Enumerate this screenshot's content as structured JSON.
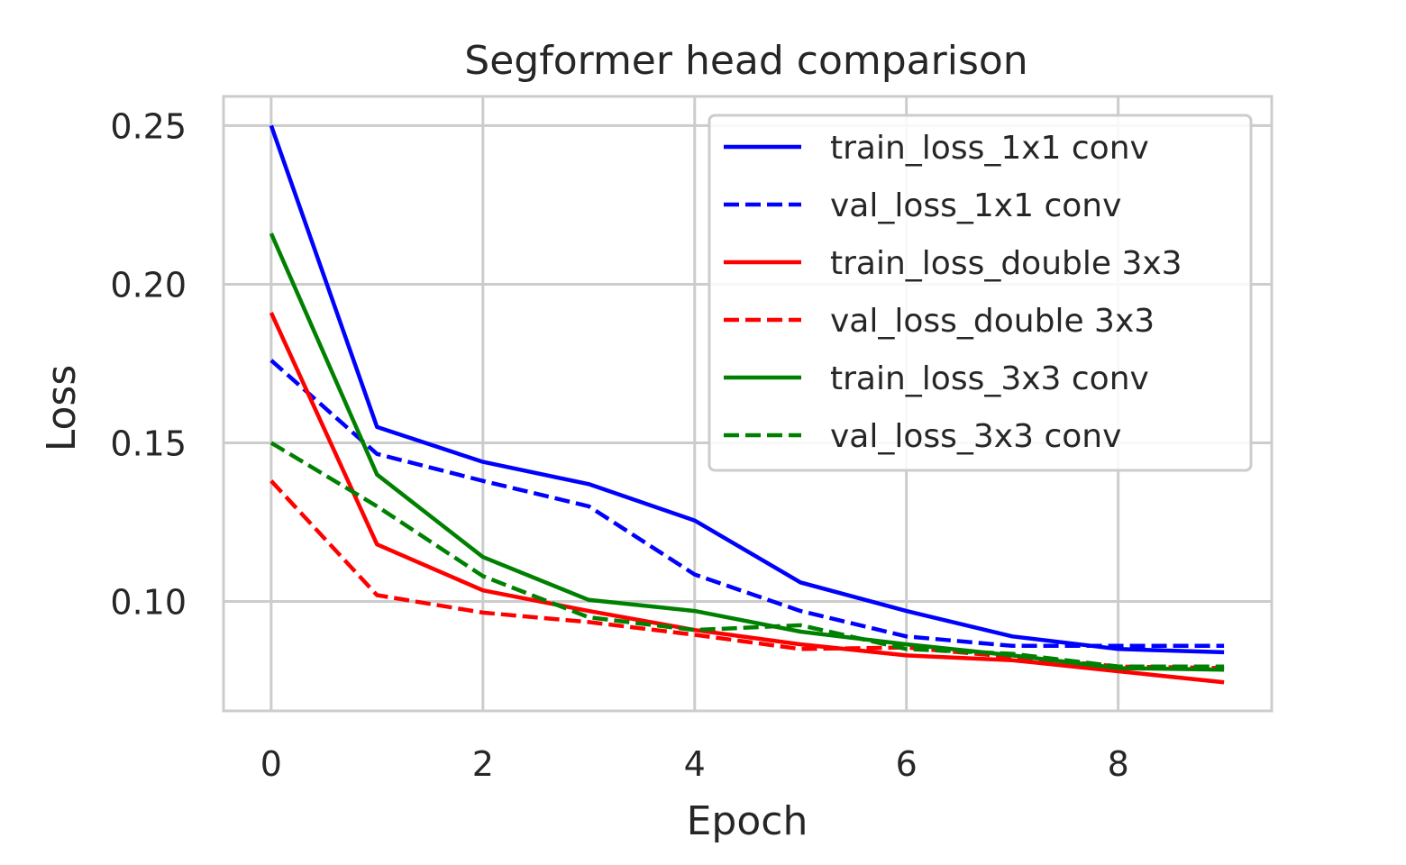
{
  "chart_data": {
    "type": "line",
    "title": "Segformer head comparison",
    "xlabel": "Epoch",
    "ylabel": "Loss",
    "xlim": [
      -0.45,
      9.45
    ],
    "ylim": [
      0.0655,
      0.2592
    ],
    "xticks": [
      0,
      2,
      4,
      6,
      8
    ],
    "xtick_labels": [
      "0",
      "2",
      "4",
      "6",
      "8"
    ],
    "yticks": [
      0.1,
      0.15,
      0.2,
      0.25
    ],
    "ytick_labels": [
      "0.10",
      "0.15",
      "0.20",
      "0.25"
    ],
    "grid": true,
    "legend_position": "top-right",
    "x": [
      0,
      1,
      2,
      3,
      4,
      5,
      6,
      7,
      8,
      9
    ],
    "series": [
      {
        "name": "train_loss_1x1 conv",
        "color": "#0000ff",
        "dash": "solid",
        "values": [
          0.25,
          0.155,
          0.144,
          0.137,
          0.1255,
          0.106,
          0.097,
          0.089,
          0.085,
          0.084
        ]
      },
      {
        "name": "val_loss_1x1 conv",
        "color": "#0000ff",
        "dash": "dashed",
        "values": [
          0.176,
          0.1465,
          0.138,
          0.13,
          0.1085,
          0.097,
          0.089,
          0.086,
          0.086,
          0.086
        ]
      },
      {
        "name": "train_loss_double 3x3",
        "color": "#ff0000",
        "dash": "solid",
        "values": [
          0.191,
          0.118,
          0.1035,
          0.097,
          0.091,
          0.0865,
          0.083,
          0.0815,
          0.078,
          0.0745
        ]
      },
      {
        "name": "val_loss_double 3x3",
        "color": "#ff0000",
        "dash": "dashed",
        "values": [
          0.138,
          0.102,
          0.0965,
          0.0935,
          0.0895,
          0.085,
          0.0855,
          0.0825,
          0.0795,
          0.079
        ]
      },
      {
        "name": "train_loss_3x3 conv",
        "color": "#008000",
        "dash": "solid",
        "values": [
          0.216,
          0.14,
          0.114,
          0.1005,
          0.097,
          0.0905,
          0.0865,
          0.083,
          0.079,
          0.0785
        ]
      },
      {
        "name": "val_loss_3x3 conv",
        "color": "#008000",
        "dash": "dashed",
        "values": [
          0.15,
          0.13,
          0.108,
          0.095,
          0.091,
          0.0925,
          0.085,
          0.0835,
          0.0795,
          0.0795
        ]
      }
    ]
  }
}
